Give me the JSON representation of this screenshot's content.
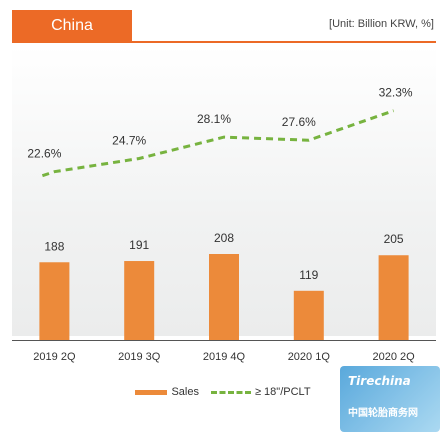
{
  "header": {
    "tab_label": "China",
    "unit_label": "[Unit: Billion KRW, %]"
  },
  "colors": {
    "accent": "#ec6a26",
    "bar": "#ec8a3a",
    "line": "#77b33f"
  },
  "chart_data": {
    "type": "bar",
    "categories": [
      "2019 2Q",
      "2019 3Q",
      "2019 4Q",
      "2020 1Q",
      "2020 2Q"
    ],
    "series": [
      {
        "name": "Sales",
        "type": "bar",
        "values": [
          188,
          191,
          208,
          119,
          205
        ],
        "labels": [
          "188",
          "191",
          "208",
          "119",
          "205"
        ]
      },
      {
        "name": "≥ 18\"/PCLT",
        "type": "line",
        "values": [
          22.6,
          24.7,
          28.1,
          27.6,
          32.3
        ],
        "labels": [
          "22.6%",
          "24.7%",
          "28.1%",
          "27.6%",
          "32.3%"
        ]
      }
    ],
    "ylim": [
      0,
      260
    ],
    "line_ylim": [
      20,
      34
    ],
    "grid": false,
    "legend_position": "bottom"
  },
  "watermark": {
    "logo": "Tirechina",
    "subtitle": "中国轮胎商务网"
  }
}
